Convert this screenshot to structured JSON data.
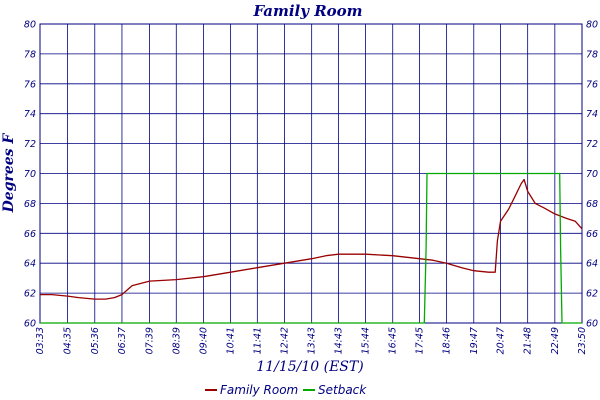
{
  "chart_data": {
    "type": "line",
    "title": "Family Room",
    "xlabel": "11/15/10 (EST)",
    "ylabel": "Degrees F",
    "ylim": [
      60,
      80
    ],
    "yticks": [
      60,
      62,
      64,
      66,
      68,
      70,
      72,
      74,
      76,
      78,
      80
    ],
    "y_right_axis": true,
    "grid": true,
    "legend_position": "bottom",
    "x_ticks": [
      "03:33",
      "04:35",
      "05:36",
      "06:37",
      "07:39",
      "08:39",
      "09:40",
      "10:41",
      "11:41",
      "12:42",
      "13:43",
      "14:43",
      "15:44",
      "16:45",
      "17:45",
      "18:46",
      "19:47",
      "20:47",
      "21:48",
      "22:49",
      "23:50"
    ],
    "series": [
      {
        "name": "Family Room",
        "color": "#990000",
        "points": [
          [
            "03:33",
            61.9
          ],
          [
            "04:00",
            61.9
          ],
          [
            "04:35",
            61.8
          ],
          [
            "05:00",
            61.7
          ],
          [
            "05:36",
            61.6
          ],
          [
            "06:00",
            61.6
          ],
          [
            "06:20",
            61.7
          ],
          [
            "06:37",
            61.9
          ],
          [
            "07:00",
            62.5
          ],
          [
            "07:39",
            62.8
          ],
          [
            "08:39",
            62.9
          ],
          [
            "09:40",
            63.1
          ],
          [
            "10:41",
            63.4
          ],
          [
            "11:41",
            63.7
          ],
          [
            "12:42",
            64.0
          ],
          [
            "13:43",
            64.3
          ],
          [
            "14:15",
            64.5
          ],
          [
            "14:43",
            64.6
          ],
          [
            "15:44",
            64.6
          ],
          [
            "16:45",
            64.5
          ],
          [
            "17:45",
            64.3
          ],
          [
            "18:15",
            64.2
          ],
          [
            "18:46",
            64.0
          ],
          [
            "19:20",
            63.7
          ],
          [
            "19:47",
            63.5
          ],
          [
            "20:20",
            63.4
          ],
          [
            "20:35",
            63.4
          ],
          [
            "20:40",
            65.5
          ],
          [
            "20:47",
            66.8
          ],
          [
            "21:05",
            67.6
          ],
          [
            "21:20",
            68.5
          ],
          [
            "21:33",
            69.3
          ],
          [
            "21:40",
            69.6
          ],
          [
            "21:48",
            68.8
          ],
          [
            "22:05",
            68.0
          ],
          [
            "22:25",
            67.7
          ],
          [
            "22:49",
            67.3
          ],
          [
            "23:15",
            67.0
          ],
          [
            "23:35",
            66.8
          ],
          [
            "23:50",
            66.3
          ]
        ]
      },
      {
        "name": "Setback",
        "color": "#00aa00",
        "points": [
          [
            "03:33",
            60
          ],
          [
            "17:56",
            60
          ],
          [
            "18:00",
            65
          ],
          [
            "18:02",
            70
          ],
          [
            "23:00",
            70
          ],
          [
            "23:02",
            65
          ],
          [
            "23:05",
            60
          ],
          [
            "23:50",
            60
          ]
        ]
      }
    ]
  }
}
